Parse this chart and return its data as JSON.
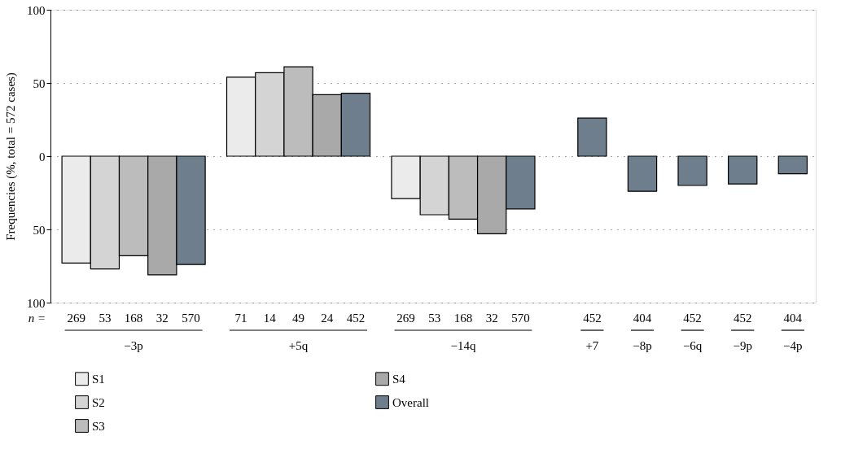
{
  "chart_data": {
    "type": "bar",
    "ylabel": "Frequencies (%, total = 572 cases)",
    "categories": [
      "−3p",
      "+5q",
      "−14q",
      "+7",
      "−8p",
      "−6q",
      "−9p",
      "−4p"
    ],
    "series": [
      {
        "name": "S1",
        "color": "#ebebeb",
        "values": [
          -73,
          54,
          -29,
          null,
          null,
          null,
          null,
          null
        ]
      },
      {
        "name": "S2",
        "color": "#d4d4d4",
        "values": [
          -77,
          57,
          -40,
          null,
          null,
          null,
          null,
          null
        ]
      },
      {
        "name": "S3",
        "color": "#bcbcbc",
        "values": [
          -68,
          61,
          -43,
          null,
          null,
          null,
          null,
          null
        ]
      },
      {
        "name": "S4",
        "color": "#a9a9a9",
        "values": [
          -81,
          42,
          -53,
          null,
          null,
          null,
          null,
          null
        ]
      },
      {
        "name": "Overall",
        "color": "#6f7e8c",
        "values": [
          -74,
          43,
          -36,
          26,
          -24,
          -20,
          -19,
          -12
        ]
      }
    ],
    "ylim": [
      -100,
      100
    ],
    "yticks": [
      {
        "value": -100,
        "label": "100"
      },
      {
        "value": -50,
        "label": "50"
      },
      0,
      50,
      100
    ],
    "grid": "y",
    "legend": "bottom left",
    "annotations": [
      "n =",
      "269",
      "53",
      "168",
      "32",
      "570",
      "71",
      "14",
      "49",
      "24",
      "452",
      "269",
      "53",
      "168",
      "32",
      "570",
      "452",
      "404",
      "452",
      "452",
      "404"
    ]
  }
}
